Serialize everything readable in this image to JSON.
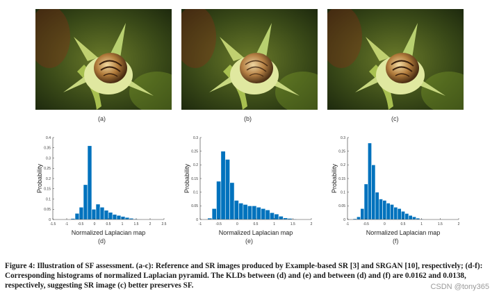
{
  "panels": {
    "a": "(a)",
    "b": "(b)",
    "c": "(c)",
    "d": "(d)",
    "e": "(e)",
    "f": "(f)"
  },
  "chart_data": [
    {
      "type": "bar",
      "xlabel": "Normalized Laplacian map",
      "ylabel": "Probability",
      "xlim": [
        -1.5,
        2.5
      ],
      "ylim": [
        0,
        0.4
      ],
      "xticks": [
        "-1.5",
        "-1",
        "-0.5",
        "0",
        "0.5",
        "1",
        "1.5",
        "2",
        "2.5"
      ],
      "yticks": [
        "0",
        "0.05",
        "0.1",
        "0.15",
        "0.2",
        "0.25",
        "0.3",
        "0.35",
        "0.4"
      ],
      "bin_start": -0.85,
      "bin_width": 0.15,
      "values": [
        0.005,
        0.03,
        0.06,
        0.17,
        0.36,
        0.05,
        0.075,
        0.06,
        0.045,
        0.035,
        0.025,
        0.02,
        0.015,
        0.01,
        0.006,
        0.003,
        0.002
      ]
    },
    {
      "type": "bar",
      "xlabel": "Normalized Laplacian map",
      "ylabel": "Probability",
      "xlim": [
        -1,
        2
      ],
      "ylim": [
        0,
        0.3
      ],
      "xticks": [
        "-1",
        "-0.5",
        "0",
        "0.5",
        "1",
        "1.5",
        "2"
      ],
      "yticks": [
        "0",
        "0.05",
        "0.1",
        "0.15",
        "0.2",
        "0.25",
        "0.3"
      ],
      "bin_start": -0.8,
      "bin_width": 0.12,
      "values": [
        0.005,
        0.04,
        0.14,
        0.25,
        0.22,
        0.135,
        0.07,
        0.06,
        0.055,
        0.05,
        0.05,
        0.045,
        0.04,
        0.035,
        0.025,
        0.02,
        0.012,
        0.006,
        0.004,
        0.002
      ]
    },
    {
      "type": "bar",
      "xlabel": "Normalized Laplacian map",
      "ylabel": "Probability",
      "xlim": [
        -1,
        2
      ],
      "ylim": [
        0,
        0.3
      ],
      "xticks": [
        "-1",
        "-0.5",
        "0",
        "0.5",
        "1",
        "1.5",
        "2"
      ],
      "yticks": [
        "0",
        "0.05",
        "0.1",
        "0.15",
        "0.2",
        "0.25",
        "0.3"
      ],
      "bin_start": -0.85,
      "bin_width": 0.1,
      "values": [
        0.003,
        0.01,
        0.04,
        0.13,
        0.28,
        0.2,
        0.1,
        0.075,
        0.07,
        0.06,
        0.055,
        0.045,
        0.04,
        0.03,
        0.022,
        0.015,
        0.01,
        0.005,
        0.002,
        0.001
      ]
    }
  ],
  "caption": "Figure 4: Illustration of SF assessment. (a-c): Reference and SR images produced by Example-based SR [3] and SRGAN [10], respectively; (d-f): Corresponding histograms of normalized Laplacian pyramid. The KLDs between (d) and (e) and between (d) and (f) are 0.0162 and 0.0138, respectively, suggesting SR image (c) better preserves SF.",
  "watermark": "CSDN @tony365",
  "colors": {
    "bar": "#0072BD",
    "bar_edge": "#ffffff",
    "axis": "#333333"
  }
}
